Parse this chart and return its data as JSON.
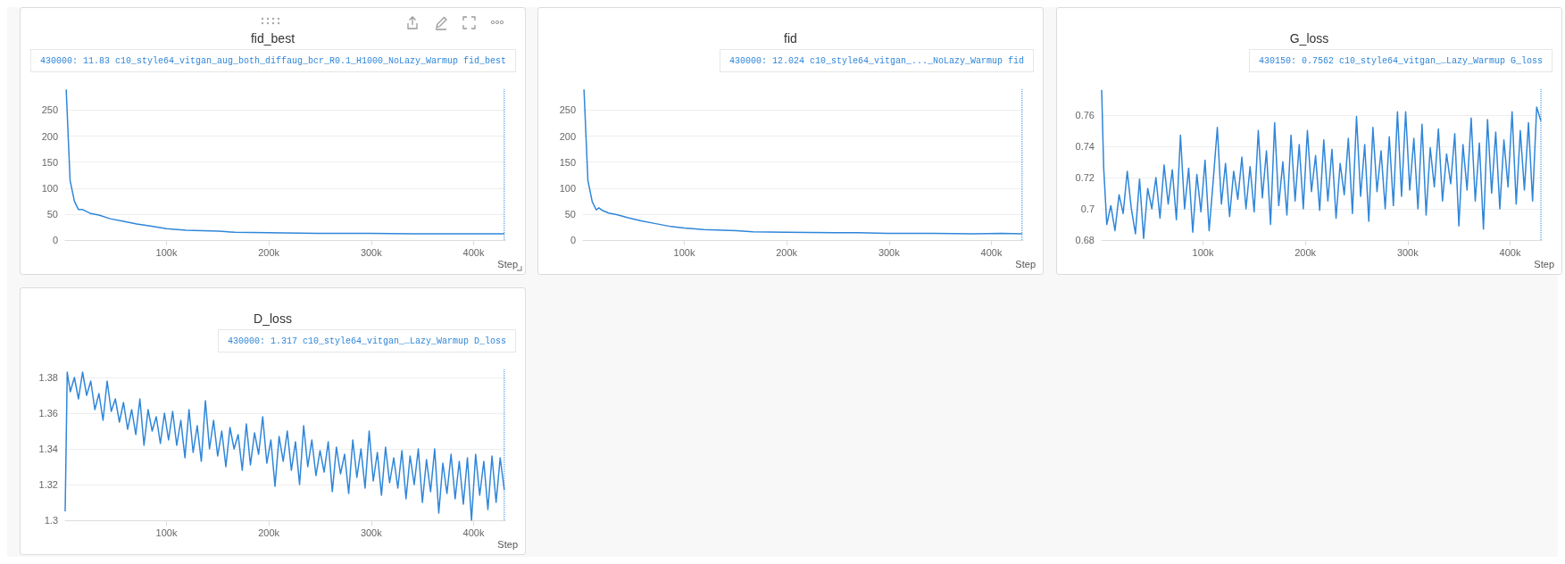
{
  "chart_data": [
    {
      "type": "line",
      "title": "fid_best",
      "xlabel": "Step",
      "grid": "y",
      "marker": "none",
      "line_style": "solid",
      "xlim": [
        1000,
        431000
      ],
      "xticks": [
        {
          "value": 100000,
          "label": "100k"
        },
        {
          "value": 200000,
          "label": "200k"
        },
        {
          "value": 300000,
          "label": "300k"
        },
        {
          "value": 400000,
          "label": "400k"
        }
      ],
      "ylim": [
        0,
        292
      ],
      "yticks": [
        0,
        50,
        100,
        150,
        200,
        250
      ],
      "ref_lines": [
        {
          "axis": "x",
          "value": 430000,
          "line_style": "dotted"
        }
      ],
      "annotations": [
        "430000: 11.83 c10_style64_vitgan_aug_both_diffaug_bcr_R0.1_H1000_NoLazy_Warmup fid_best"
      ],
      "series": [
        {
          "color": "#2f86d9",
          "x": [
            2000,
            5800,
            10000,
            13900,
            17700,
            26000,
            34000,
            45000,
            58000,
            71000,
            87000,
            100000,
            119000,
            151000,
            167000,
            199000,
            247000,
            298000,
            343000,
            382000,
            430000
          ],
          "values": [
            290,
            115,
            75,
            59,
            59,
            51,
            48,
            41,
            36,
            31,
            26,
            22,
            19,
            17,
            15,
            14,
            13,
            13,
            12,
            12,
            11.83
          ]
        }
      ]
    },
    {
      "type": "line",
      "title": "fid",
      "xlabel": "Step",
      "grid": "y",
      "marker": "none",
      "line_style": "solid",
      "xlim": [
        1000,
        431000
      ],
      "xticks": [
        {
          "value": 100000,
          "label": "100k"
        },
        {
          "value": 200000,
          "label": "200k"
        },
        {
          "value": 300000,
          "label": "300k"
        },
        {
          "value": 400000,
          "label": "400k"
        }
      ],
      "ylim": [
        0,
        292
      ],
      "yticks": [
        0,
        50,
        100,
        150,
        200,
        250
      ],
      "ref_lines": [
        {
          "axis": "x",
          "value": 430000,
          "line_style": "dotted"
        }
      ],
      "annotations": [
        "430000: 12.024 c10_style64_vitgan_..._NoLazy_Warmup fid"
      ],
      "series": [
        {
          "color": "#2f86d9",
          "x": [
            2000,
            5800,
            10000,
            14000,
            16500,
            20000,
            26000,
            34000,
            45000,
            58000,
            71000,
            87000,
            100000,
            119000,
            151000,
            167000,
            199000,
            247000,
            270000,
            298000,
            343000,
            382000,
            410000,
            430000
          ],
          "values": [
            290,
            115,
            74,
            58,
            62,
            57,
            52,
            49,
            43,
            37,
            32,
            26,
            23,
            20,
            18,
            16,
            15,
            14,
            14,
            13,
            13,
            12,
            13,
            12.024
          ]
        }
      ]
    },
    {
      "type": "line",
      "title": "G_loss",
      "xlabel": "Step",
      "grid": "y",
      "marker": "none",
      "line_style": "solid",
      "xlim": [
        1000,
        431000
      ],
      "xticks": [
        {
          "value": 100000,
          "label": "100k"
        },
        {
          "value": 200000,
          "label": "200k"
        },
        {
          "value": 300000,
          "label": "300k"
        },
        {
          "value": 400000,
          "label": "400k"
        }
      ],
      "ylim": [
        0.68,
        0.777
      ],
      "yticks": [
        0.68,
        0.7,
        0.72,
        0.74,
        0.76
      ],
      "ref_lines": [
        {
          "axis": "x",
          "value": 430150,
          "line_style": "dotted"
        }
      ],
      "annotations": [
        "430150: 0.7562 c10_style64_vitgan_…Lazy_Warmup G_loss"
      ],
      "series": [
        {
          "color": "#2f86d9",
          "x": [
            1000,
            3000,
            6000,
            10000,
            14000,
            18000,
            22000,
            26000,
            30000,
            34000,
            38000,
            42000,
            46000,
            50000,
            54000,
            58000,
            62000,
            66000,
            70000,
            74000,
            78000,
            82000,
            86000,
            90000,
            94000,
            98000,
            102000,
            106000,
            110000,
            114000,
            118000,
            122000,
            126000,
            130000,
            134000,
            138000,
            142000,
            146000,
            150000,
            154000,
            158000,
            162000,
            166000,
            170000,
            174000,
            178000,
            182000,
            186000,
            190000,
            194000,
            198000,
            202000,
            206000,
            210000,
            214000,
            218000,
            222000,
            226000,
            230000,
            234000,
            238000,
            242000,
            246000,
            250000,
            254000,
            258000,
            262000,
            266000,
            270000,
            274000,
            278000,
            282000,
            286000,
            290000,
            294000,
            298000,
            302000,
            306000,
            310000,
            314000,
            318000,
            322000,
            326000,
            330000,
            334000,
            338000,
            342000,
            346000,
            350000,
            354000,
            358000,
            362000,
            366000,
            370000,
            374000,
            378000,
            382000,
            386000,
            390000,
            394000,
            398000,
            402000,
            406000,
            410000,
            414000,
            418000,
            422000,
            426000,
            430150
          ],
          "values": [
            0.776,
            0.726,
            0.69,
            0.702,
            0.686,
            0.709,
            0.697,
            0.724,
            0.7,
            0.684,
            0.719,
            0.681,
            0.713,
            0.7,
            0.72,
            0.694,
            0.728,
            0.703,
            0.725,
            0.693,
            0.747,
            0.7,
            0.726,
            0.685,
            0.722,
            0.698,
            0.731,
            0.686,
            0.718,
            0.752,
            0.703,
            0.729,
            0.695,
            0.724,
            0.706,
            0.733,
            0.7,
            0.727,
            0.698,
            0.75,
            0.707,
            0.737,
            0.69,
            0.755,
            0.702,
            0.73,
            0.696,
            0.747,
            0.705,
            0.741,
            0.7,
            0.75,
            0.711,
            0.734,
            0.699,
            0.744,
            0.705,
            0.738,
            0.694,
            0.729,
            0.709,
            0.745,
            0.697,
            0.759,
            0.708,
            0.741,
            0.692,
            0.752,
            0.711,
            0.737,
            0.7,
            0.746,
            0.702,
            0.762,
            0.708,
            0.762,
            0.712,
            0.745,
            0.7,
            0.754,
            0.696,
            0.739,
            0.714,
            0.751,
            0.705,
            0.735,
            0.716,
            0.748,
            0.689,
            0.741,
            0.712,
            0.758,
            0.705,
            0.742,
            0.687,
            0.757,
            0.71,
            0.749,
            0.7,
            0.744,
            0.714,
            0.762,
            0.703,
            0.75,
            0.712,
            0.755,
            0.705,
            0.765,
            0.7562
          ]
        }
      ]
    },
    {
      "type": "line",
      "title": "D_loss",
      "xlabel": "Step",
      "grid": "y",
      "marker": "none",
      "line_style": "solid",
      "xlim": [
        1000,
        431000
      ],
      "xticks": [
        {
          "value": 100000,
          "label": "100k"
        },
        {
          "value": 200000,
          "label": "200k"
        },
        {
          "value": 300000,
          "label": "300k"
        },
        {
          "value": 400000,
          "label": "400k"
        }
      ],
      "ylim": [
        1.3,
        1.385
      ],
      "yticks": [
        1.3,
        1.32,
        1.34,
        1.36,
        1.38
      ],
      "ref_lines": [
        {
          "axis": "x",
          "value": 430000,
          "line_style": "dotted"
        }
      ],
      "annotations": [
        "430000: 1.317 c10_style64_vitgan_…Lazy_Warmup D_loss"
      ],
      "series": [
        {
          "color": "#2f86d9",
          "x": [
            1000,
            3000,
            6000,
            10000,
            14000,
            18000,
            22000,
            26000,
            30000,
            34000,
            38000,
            42000,
            46000,
            50000,
            54000,
            58000,
            62000,
            66000,
            70000,
            74000,
            78000,
            82000,
            86000,
            90000,
            94000,
            98000,
            102000,
            106000,
            110000,
            114000,
            118000,
            122000,
            126000,
            130000,
            134000,
            138000,
            142000,
            146000,
            150000,
            154000,
            158000,
            162000,
            166000,
            170000,
            174000,
            178000,
            182000,
            186000,
            190000,
            194000,
            198000,
            202000,
            206000,
            210000,
            214000,
            218000,
            222000,
            226000,
            230000,
            234000,
            238000,
            242000,
            246000,
            250000,
            254000,
            258000,
            262000,
            266000,
            270000,
            274000,
            278000,
            282000,
            286000,
            290000,
            294000,
            298000,
            302000,
            306000,
            310000,
            314000,
            318000,
            322000,
            326000,
            330000,
            334000,
            338000,
            342000,
            346000,
            350000,
            354000,
            358000,
            362000,
            366000,
            370000,
            374000,
            378000,
            382000,
            386000,
            390000,
            394000,
            398000,
            402000,
            406000,
            410000,
            414000,
            418000,
            422000,
            426000,
            430000
          ],
          "values": [
            1.305,
            1.383,
            1.372,
            1.38,
            1.368,
            1.383,
            1.37,
            1.378,
            1.362,
            1.371,
            1.356,
            1.378,
            1.361,
            1.368,
            1.355,
            1.366,
            1.351,
            1.362,
            1.348,
            1.368,
            1.342,
            1.362,
            1.35,
            1.358,
            1.343,
            1.36,
            1.345,
            1.361,
            1.342,
            1.356,
            1.335,
            1.362,
            1.338,
            1.353,
            1.333,
            1.367,
            1.34,
            1.356,
            1.336,
            1.35,
            1.33,
            1.352,
            1.34,
            1.348,
            1.328,
            1.354,
            1.331,
            1.349,
            1.337,
            1.358,
            1.332,
            1.345,
            1.319,
            1.347,
            1.333,
            1.35,
            1.328,
            1.344,
            1.32,
            1.353,
            1.33,
            1.345,
            1.325,
            1.339,
            1.327,
            1.344,
            1.316,
            1.341,
            1.326,
            1.337,
            1.315,
            1.345,
            1.324,
            1.34,
            1.318,
            1.35,
            1.322,
            1.338,
            1.314,
            1.341,
            1.321,
            1.335,
            1.318,
            1.339,
            1.312,
            1.336,
            1.32,
            1.34,
            1.31,
            1.334,
            1.316,
            1.34,
            1.304,
            1.332,
            1.315,
            1.337,
            1.312,
            1.333,
            1.309,
            1.335,
            1.3,
            1.337,
            1.314,
            1.333,
            1.306,
            1.336,
            1.31,
            1.335,
            1.317
          ]
        }
      ]
    }
  ]
}
